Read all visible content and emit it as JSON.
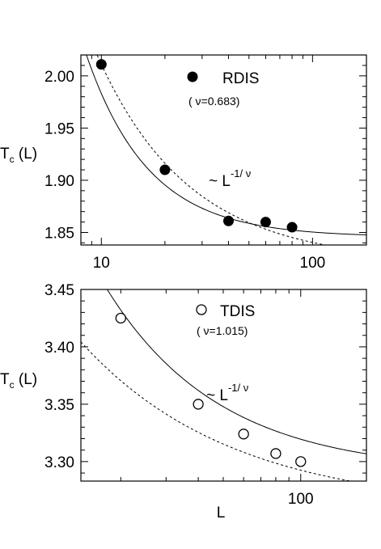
{
  "chart_data": [
    {
      "type": "scatter",
      "xscale": "log",
      "xlim": [
        8,
        180
      ],
      "ylim": [
        1.838,
        2.02
      ],
      "xticks": [
        10,
        100
      ],
      "xtick_labels": [
        "10",
        "100"
      ],
      "yticks": [
        1.85,
        1.9,
        1.95,
        2.0
      ],
      "ytick_labels": [
        "1.85",
        "1.90",
        "1.95",
        "2.00"
      ],
      "ylabel": {
        "main": "T",
        "sub": "c",
        "tail": " (L)"
      },
      "legend": {
        "label": "RDIS",
        "marker": "filled-circle"
      },
      "note": "( ν=0.683)",
      "fit_label": {
        "prefix": "~ L",
        "exponent": "-1/ ν"
      },
      "points": [
        {
          "x": 10,
          "y": 2.011
        },
        {
          "x": 20,
          "y": 1.91
        },
        {
          "x": 40,
          "y": 1.861
        },
        {
          "x": 60,
          "y": 1.86
        },
        {
          "x": 80,
          "y": 1.855
        }
      ],
      "fits": [
        {
          "style": "solid",
          "a": 1.8457,
          "b": 4.0,
          "nu": 0.683
        },
        {
          "style": "dashed",
          "a": 1.8215,
          "b": 1.896,
          "nu": 1.0
        }
      ]
    },
    {
      "type": "scatter",
      "xscale": "log",
      "xlim": [
        14,
        180
      ],
      "ylim": [
        3.283,
        3.45
      ],
      "xticks": [
        100
      ],
      "xtick_labels": [
        "100"
      ],
      "yticks": [
        3.3,
        3.35,
        3.4,
        3.45
      ],
      "ytick_labels": [
        "3.30",
        "3.35",
        "3.40",
        "3.45"
      ],
      "xlabel": "L",
      "ylabel": {
        "main": "T",
        "sub": "c",
        "tail": " (L)"
      },
      "legend": {
        "label": "TDIS",
        "marker": "open-circle"
      },
      "note": "( ν=1.015)",
      "fit_label": {
        "prefix": "~ L",
        "exponent": "-1/ ν"
      },
      "points": [
        {
          "x": 20,
          "y": 3.425
        },
        {
          "x": 40,
          "y": 3.35
        },
        {
          "x": 60,
          "y": 3.324
        },
        {
          "x": 80,
          "y": 3.307
        },
        {
          "x": 100,
          "y": 3.3
        }
      ],
      "fits": [
        {
          "style": "solid",
          "a": 3.2905,
          "b": 2.7083,
          "nu": 1.015
        },
        {
          "style": "dashed",
          "a": 3.2585,
          "b": 1.03,
          "nu": 1.35
        }
      ]
    }
  ]
}
